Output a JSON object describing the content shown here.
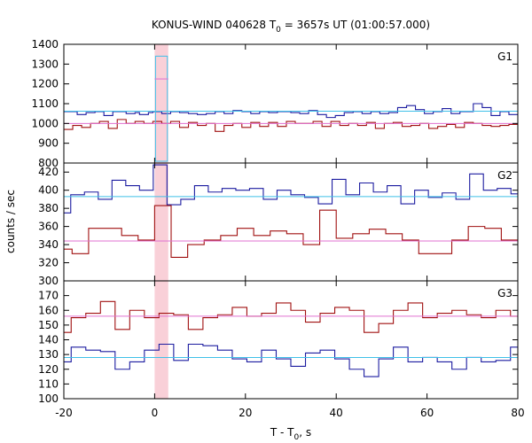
{
  "chart_data": {
    "type": "line",
    "title": "KONUS-WIND 040628 T",
    "title_sub": "0",
    "title_rest": " = 3657s UT (01:00:57.000)",
    "xlabel": "T - T",
    "xlabel_sub": "0",
    "xlabel_rest": ", s",
    "ylabel": "counts / sec",
    "xlim": [
      -20,
      80
    ],
    "xticks": [
      "-20",
      "0",
      "20",
      "40",
      "60",
      "80"
    ],
    "highlight_interval": [
      0,
      3
    ],
    "colors": {
      "blue": "#1c1ca0",
      "red": "#a01010",
      "cyan": "#3fc0e8",
      "pink": "#e070d0",
      "highlight": "#f9d0d8"
    },
    "panels": [
      {
        "name": "G1",
        "ylim": [
          800,
          1400
        ],
        "yticks": [
          "800",
          "900",
          "1000",
          "1100",
          "1200",
          "1300",
          "1400"
        ],
        "series": [
          {
            "color_key": "blue",
            "y": [
              1060,
              1060,
              1060,
              1045,
              1045,
              1055,
              1055,
              1060,
              1060,
              1040,
              1040,
              1060,
              1060,
              1060,
              1050,
              1050,
              1055,
              1045,
              1045,
              1055,
              1060,
              1060,
              1050,
              1050,
              1060,
              1060,
              1055,
              1055,
              1050,
              1050,
              1045,
              1045,
              1050,
              1050,
              1060,
              1060,
              1050,
              1050,
              1065,
              1065,
              1060,
              1060,
              1050,
              1050,
              1060,
              1060,
              1055,
              1055,
              1060,
              1060,
              1060,
              1055,
              1055,
              1050,
              1050,
              1065,
              1065,
              1045,
              1045,
              1030,
              1030,
              1040,
              1040,
              1055,
              1055,
              1060,
              1060,
              1050,
              1050,
              1060,
              1060,
              1050,
              1050,
              1055,
              1055,
              1080,
              1080,
              1090,
              1090,
              1070,
              1070,
              1050,
              1050,
              1060,
              1060,
              1075,
              1075,
              1050,
              1050,
              1060,
              1060,
              1060,
              1100,
              1100,
              1080,
              1080,
              1040,
              1040,
              1060,
              1060,
              1045,
              1045
            ]
          },
          {
            "color_key": "red",
            "y": [
              970,
              970,
              990,
              990,
              980,
              980,
              1000,
              1000,
              1010,
              1010,
              975,
              975,
              1020,
              1020,
              1000,
              1000,
              1010,
              1010,
              1000,
              1000,
              1010,
              1010,
              1000,
              1000,
              1010,
              1010,
              980,
              980,
              1005,
              1005,
              990,
              990,
              1000,
              1000,
              960,
              960,
              990,
              990,
              1000,
              1000,
              980,
              980,
              1005,
              1005,
              985,
              985,
              1005,
              1005,
              985,
              985,
              1010,
              1010,
              1000,
              1000,
              1000,
              1000,
              1010,
              1010,
              985,
              985,
              1010,
              1010,
              990,
              990,
              1000,
              1000,
              990,
              990,
              1005,
              1005,
              975,
              975,
              1000,
              1000,
              1005,
              1005,
              985,
              985,
              990,
              990,
              1000,
              1000,
              975,
              975,
              985,
              985,
              995,
              995,
              980,
              980,
              1005,
              1005,
              1000,
              1000,
              990,
              990,
              985,
              985,
              990,
              990,
              995,
              995
            ]
          },
          {
            "color_key": "cyan",
            "y": [
              1340
            ]
          },
          {
            "color_key": "pink",
            "y": [
              1225
            ]
          }
        ]
      },
      {
        "name": "G2",
        "ylim": [
          300,
          430
        ],
        "yticks": [
          "300",
          "320",
          "340",
          "360",
          "380",
          "400",
          "420"
        ],
        "series": [
          {
            "color_key": "blue",
            "y": [
              375,
              395,
              395,
              398,
              398,
              390,
              390,
              411,
              411,
              405,
              405,
              400,
              400,
              428,
              428,
              384,
              384,
              390,
              390,
              405,
              405,
              398,
              398,
              402,
              402,
              400,
              400,
              402,
              402,
              390,
              390,
              400,
              400,
              395,
              395,
              392,
              392,
              385,
              385,
              412,
              412,
              395,
              395,
              408,
              408,
              398,
              398,
              405,
              405,
              385,
              385,
              400,
              400,
              392,
              392,
              397,
              397,
              390,
              390,
              418,
              418,
              400,
              400,
              402,
              402,
              396
            ]
          },
          {
            "color_key": "red",
            "y": [
              335,
              330,
              330,
              358,
              358,
              358,
              358,
              350,
              350,
              345,
              345,
              383,
              383,
              326,
              326,
              340,
              340,
              345,
              345,
              350,
              350,
              358,
              358,
              350,
              350,
              355,
              355,
              352,
              352,
              340,
              340,
              378,
              378,
              347,
              347,
              352,
              352,
              357,
              357,
              352,
              352,
              345,
              345,
              330,
              330,
              330,
              330,
              345,
              345,
              360,
              360,
              358,
              358,
              345,
              345
            ]
          },
          {
            "color_key": "cyan",
            "y": [
              393
            ]
          },
          {
            "color_key": "pink",
            "y": [
              344
            ]
          }
        ]
      },
      {
        "name": "G3",
        "ylim": [
          100,
          180
        ],
        "yticks": [
          "100",
          "110",
          "120",
          "130",
          "140",
          "150",
          "160",
          "170"
        ],
        "series": [
          {
            "color_key": "blue",
            "y": [
              125,
              135,
              135,
              133,
              133,
              132,
              132,
              120,
              120,
              125,
              125,
              133,
              133,
              137,
              137,
              126,
              126,
              137,
              137,
              136,
              136,
              133,
              133,
              127,
              127,
              125,
              125,
              133,
              133,
              127,
              127,
              122,
              122,
              131,
              131,
              133,
              133,
              127,
              127,
              120,
              120,
              115,
              115,
              127,
              127,
              135,
              135,
              125,
              125,
              128,
              128,
              125,
              125,
              120,
              120,
              128,
              128,
              125,
              125,
              126,
              126,
              135
            ]
          },
          {
            "color_key": "red",
            "y": [
              145,
              155,
              155,
              158,
              158,
              166,
              166,
              147,
              147,
              160,
              160,
              155,
              155,
              158,
              158,
              157,
              157,
              147,
              147,
              155,
              155,
              157,
              157,
              162,
              162,
              156,
              156,
              158,
              158,
              165,
              165,
              160,
              160,
              152,
              152,
              158,
              158,
              162,
              162,
              160,
              160,
              145,
              145,
              151,
              151,
              160,
              160,
              165,
              165,
              155,
              155,
              158,
              158,
              160,
              160,
              157,
              157,
              155,
              155,
              160,
              160,
              156
            ]
          },
          {
            "color_key": "cyan",
            "y": [
              128
            ]
          },
          {
            "color_key": "pink",
            "y": [
              156
            ]
          }
        ]
      }
    ]
  }
}
